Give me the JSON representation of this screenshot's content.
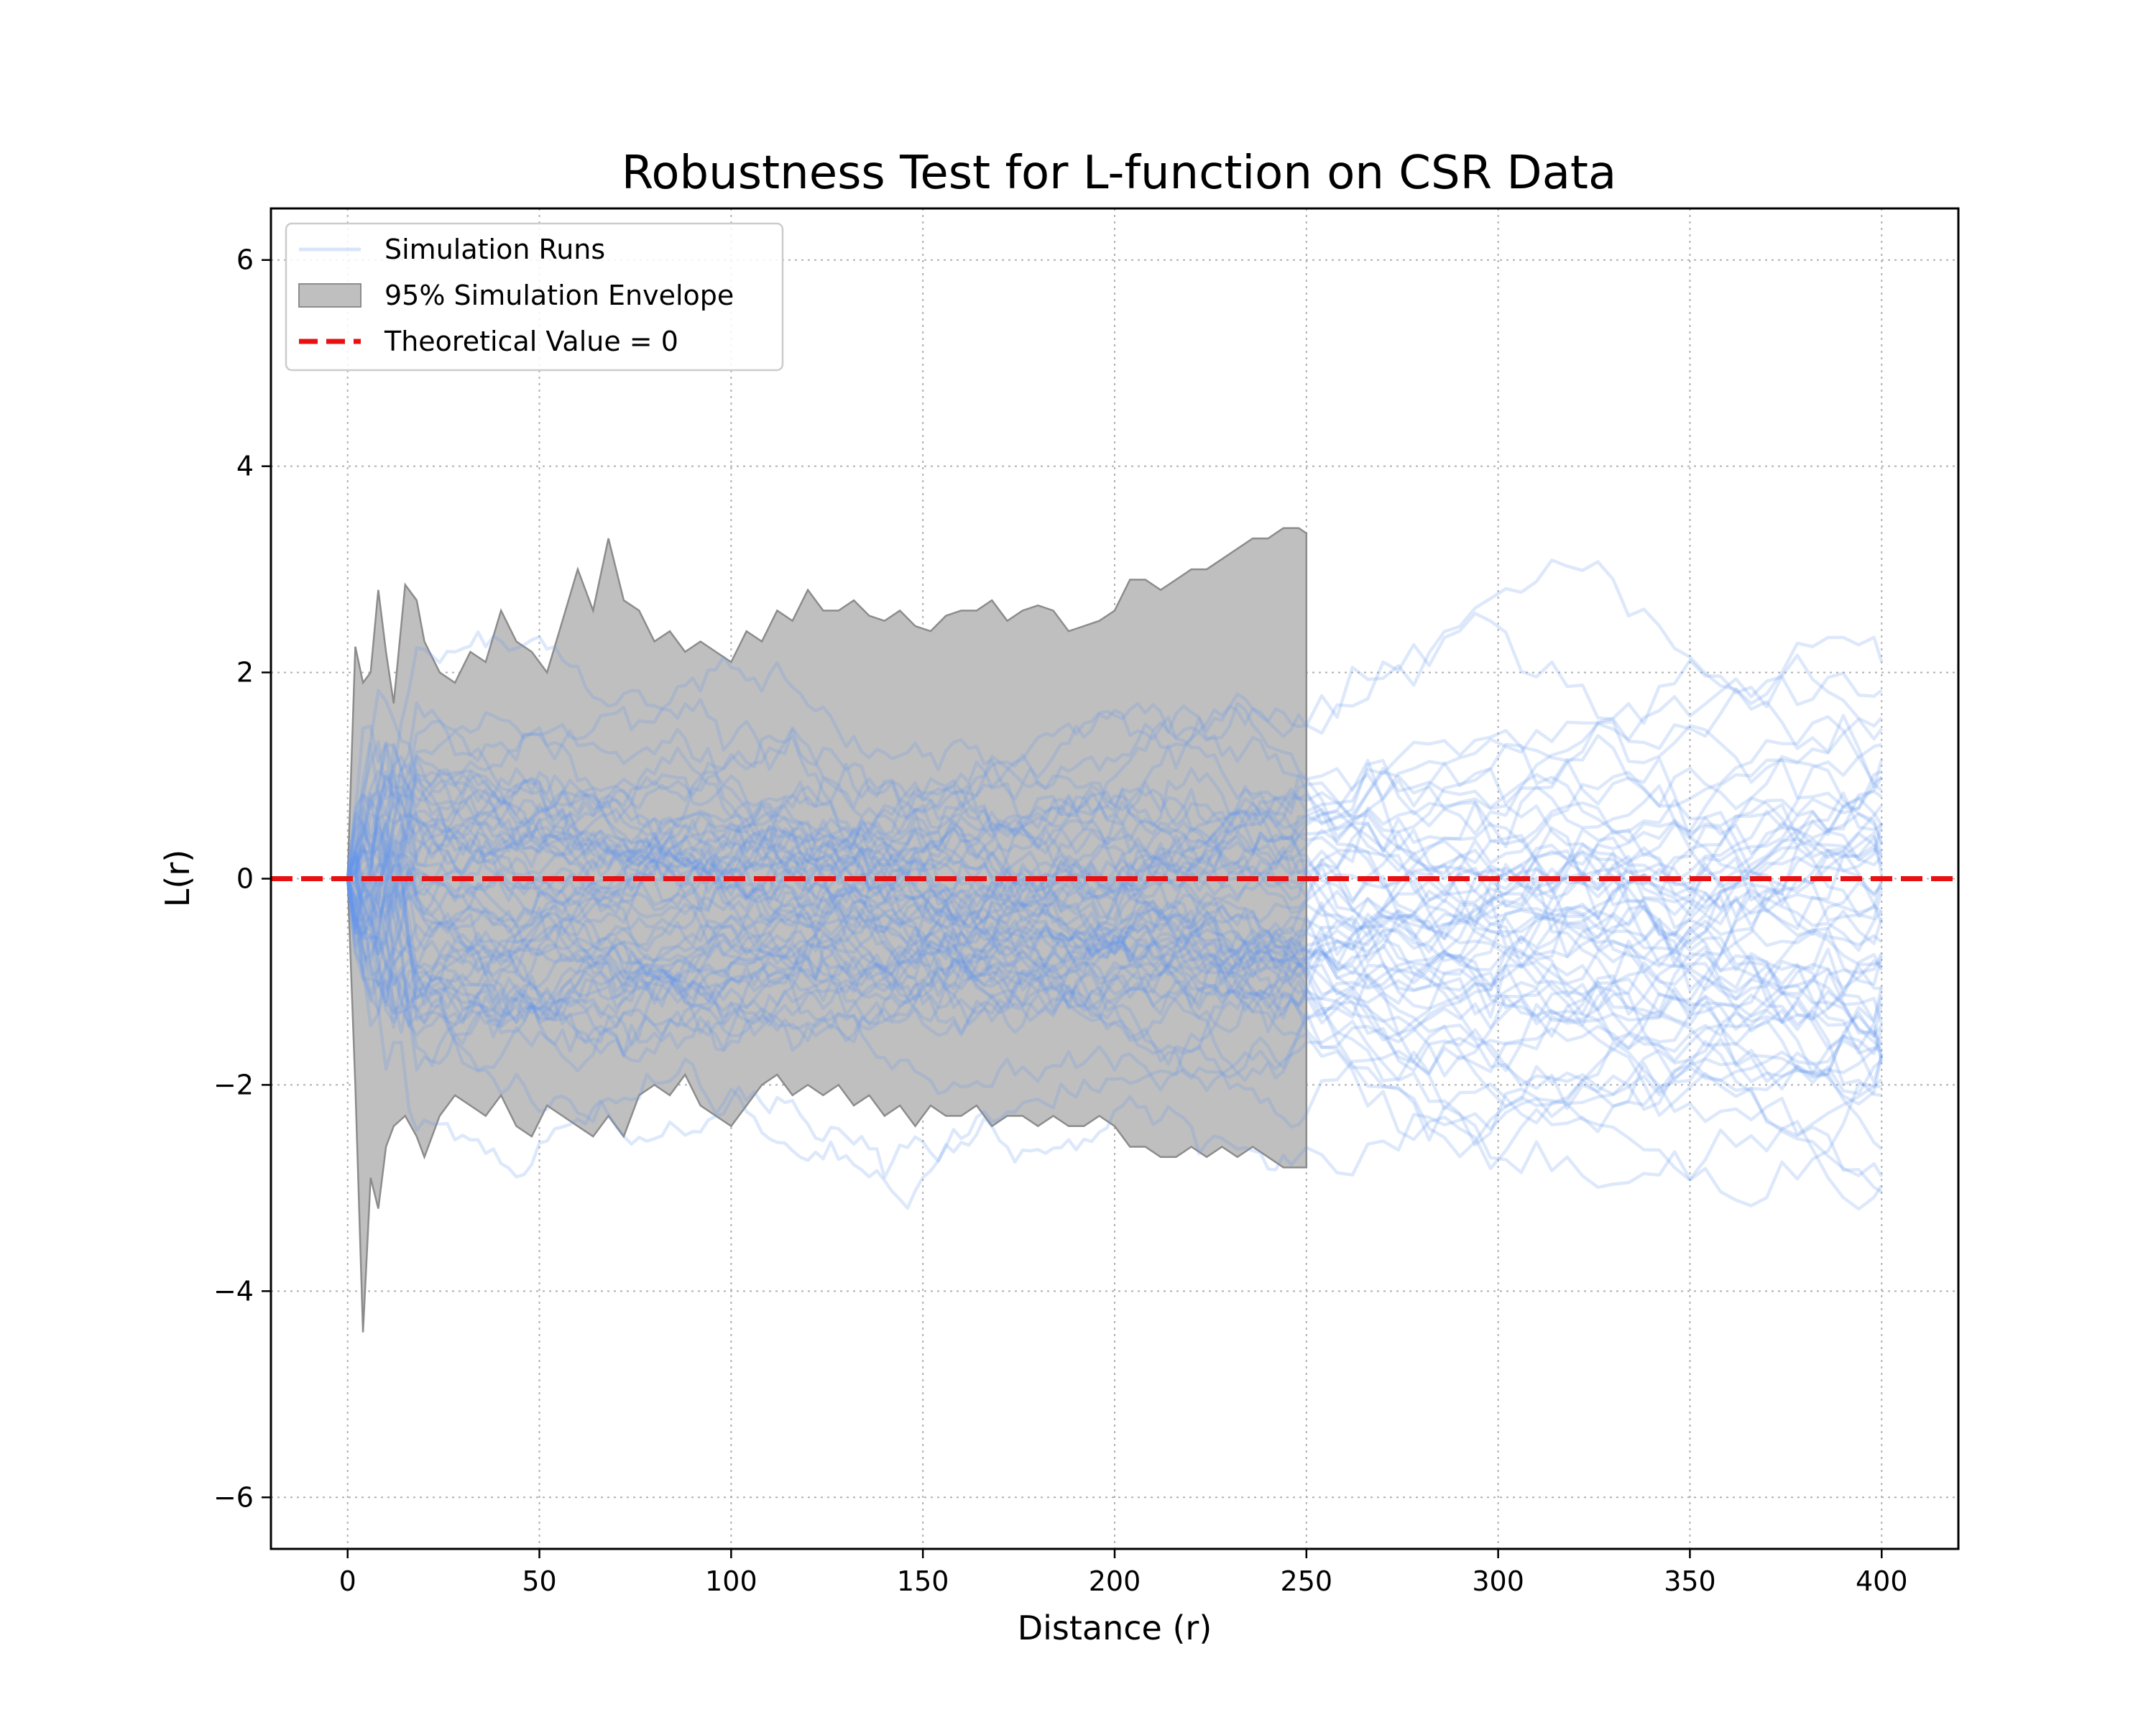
{
  "chart_data": {
    "type": "line",
    "title": "Robustness Test for L-function on CSR Data",
    "xlabel": "Distance (r)",
    "ylabel": "L(r)",
    "xlim": [
      -20,
      420
    ],
    "ylim": [
      -6.5,
      6.5
    ],
    "x_ticks": [
      0,
      50,
      100,
      150,
      200,
      250,
      300,
      350,
      400
    ],
    "x_tick_labels": [
      "0",
      "50",
      "100",
      "150",
      "200",
      "250",
      "300",
      "350",
      "400"
    ],
    "y_ticks": [
      -6,
      -4,
      -2,
      0,
      2,
      4,
      6
    ],
    "y_tick_labels": [
      "−6",
      "−4",
      "−2",
      "0",
      "2",
      "4",
      "6"
    ],
    "grid": true,
    "legend_position": "top-left",
    "legend": [
      {
        "label": "Simulation Runs",
        "kind": "line",
        "color": "#6495ED"
      },
      {
        "label": "95% Simulation Envelope",
        "kind": "patch",
        "color": "#bfbfbf"
      },
      {
        "label": "Theoretical Value = 0",
        "kind": "dashed",
        "color": "#e81010"
      }
    ],
    "reference_line": {
      "y": 0,
      "name": "Theoretical Value = 0",
      "color": "#e81010",
      "style": "dashed"
    },
    "series_color": "#6495ED",
    "envelope": {
      "name": "95% Simulation Envelope",
      "color": "#bfbfbf",
      "edge_color": "#8c8c8c",
      "x": [
        0,
        2,
        4,
        6,
        8,
        10,
        12,
        15,
        18,
        20,
        24,
        28,
        32,
        36,
        40,
        44,
        48,
        52,
        56,
        60,
        64,
        68,
        72,
        76,
        80,
        84,
        88,
        92,
        96,
        100,
        104,
        108,
        112,
        116,
        120,
        124,
        128,
        132,
        136,
        140,
        144,
        148,
        152,
        156,
        160,
        164,
        168,
        172,
        176,
        180,
        184,
        188,
        192,
        196,
        200,
        204,
        208,
        212,
        216,
        220,
        224,
        228,
        232,
        236,
        240,
        244,
        248,
        250
      ],
      "upper": [
        0.0,
        2.25,
        1.9,
        2.0,
        2.8,
        2.2,
        1.7,
        2.85,
        2.7,
        2.3,
        2.0,
        1.9,
        2.2,
        2.1,
        2.6,
        2.3,
        2.2,
        2.0,
        2.5,
        3.0,
        2.6,
        3.3,
        2.7,
        2.6,
        2.3,
        2.4,
        2.2,
        2.3,
        2.2,
        2.1,
        2.4,
        2.3,
        2.6,
        2.5,
        2.8,
        2.6,
        2.6,
        2.7,
        2.55,
        2.5,
        2.6,
        2.45,
        2.4,
        2.55,
        2.6,
        2.6,
        2.7,
        2.5,
        2.6,
        2.65,
        2.6,
        2.4,
        2.45,
        2.5,
        2.6,
        2.9,
        2.9,
        2.8,
        2.9,
        3.0,
        3.0,
        3.1,
        3.2,
        3.3,
        3.3,
        3.4,
        3.4,
        3.35
      ],
      "lower": [
        0.0,
        -2.0,
        -4.4,
        -2.9,
        -3.2,
        -2.6,
        -2.4,
        -2.3,
        -2.5,
        -2.7,
        -2.3,
        -2.1,
        -2.2,
        -2.3,
        -2.1,
        -2.4,
        -2.5,
        -2.2,
        -2.3,
        -2.4,
        -2.5,
        -2.3,
        -2.5,
        -2.1,
        -2.0,
        -2.1,
        -1.9,
        -2.2,
        -2.3,
        -2.4,
        -2.2,
        -2.0,
        -1.9,
        -2.1,
        -2.0,
        -2.1,
        -2.0,
        -2.2,
        -2.1,
        -2.3,
        -2.2,
        -2.4,
        -2.2,
        -2.3,
        -2.3,
        -2.2,
        -2.4,
        -2.3,
        -2.3,
        -2.4,
        -2.3,
        -2.4,
        -2.4,
        -2.3,
        -2.4,
        -2.6,
        -2.6,
        -2.7,
        -2.7,
        -2.6,
        -2.7,
        -2.6,
        -2.7,
        -2.6,
        -2.7,
        -2.8,
        -2.8,
        -2.8
      ]
    },
    "simulation_runs": {
      "name": "Simulation Runs",
      "count": 60,
      "x_start": 0,
      "x_end": 400
    }
  }
}
